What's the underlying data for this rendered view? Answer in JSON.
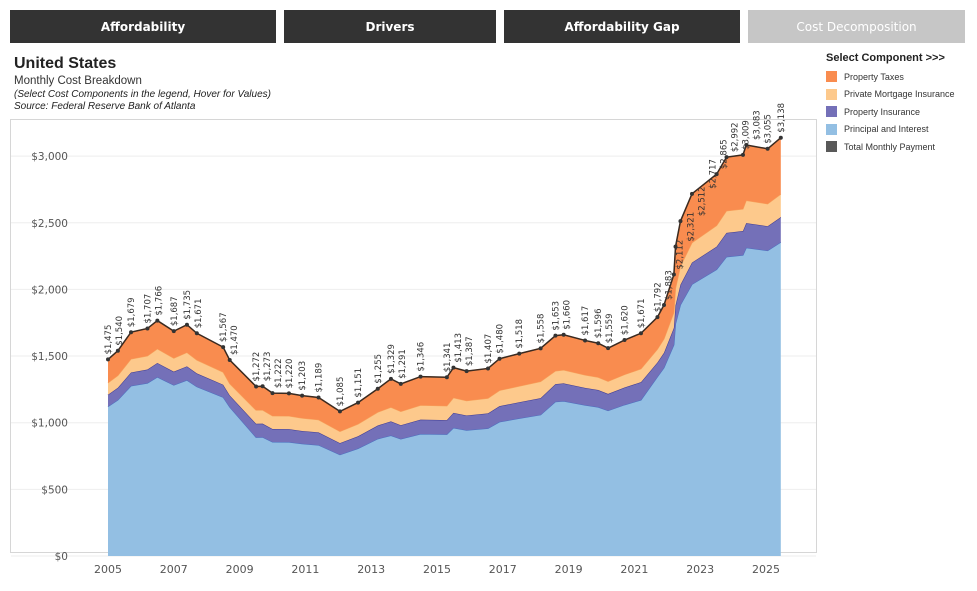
{
  "tabs": [
    {
      "label": "Affordability"
    },
    {
      "label": "Drivers"
    },
    {
      "label": "Affordability Gap"
    },
    {
      "label": "Cost Decomposition"
    }
  ],
  "header": {
    "title": "United States",
    "subtitle": "Monthly Cost Breakdown",
    "instruction": "(Select Cost Components in the legend, Hover for Values)",
    "source": "Source: Federal Reserve Bank of Atlanta"
  },
  "legend": {
    "title": "Select Component >>>",
    "items": [
      {
        "label": "Property Taxes",
        "color": "#f98c4f"
      },
      {
        "label": "Private Mortgage Insurance",
        "color": "#fdc98c"
      },
      {
        "label": "Property Insurance",
        "color": "#7470b8"
      },
      {
        "label": "Principal and Interest",
        "color": "#93bfe3"
      },
      {
        "label": "Total Monthly Payment",
        "color": "#595959"
      }
    ]
  },
  "chart_data": {
    "type": "area",
    "title": "Monthly Cost Breakdown",
    "xlabel": "",
    "ylabel": "",
    "xlim": [
      2004.2,
      2025.9
    ],
    "ylim": [
      0,
      3300
    ],
    "xticks": [
      2005,
      2007,
      2009,
      2011,
      2013,
      2015,
      2017,
      2019,
      2021,
      2023,
      2025
    ],
    "yticks": [
      {
        "v": 0,
        "label": "$0"
      },
      {
        "v": 500,
        "label": "$500"
      },
      {
        "v": 1000,
        "label": "$1,000"
      },
      {
        "v": 1500,
        "label": "$1,500"
      },
      {
        "v": 2000,
        "label": "$2,000"
      },
      {
        "v": 2500,
        "label": "$2,500"
      },
      {
        "v": 3000,
        "label": "$3,000"
      }
    ],
    "grid": true,
    "stacked": true,
    "x": [
      2005.0,
      2005.3,
      2005.7,
      2006.2,
      2006.5,
      2007.0,
      2007.4,
      2007.7,
      2008.5,
      2008.7,
      2009.5,
      2009.7,
      2010.0,
      2010.5,
      2010.9,
      2011.4,
      2012.05,
      2012.6,
      2013.2,
      2013.6,
      2013.9,
      2014.5,
      2015.3,
      2015.5,
      2015.9,
      2016.55,
      2016.9,
      2017.5,
      2018.15,
      2018.6,
      2018.85,
      2019.5,
      2019.9,
      2020.2,
      2020.7,
      2021.2,
      2021.7,
      2021.9,
      2022.2,
      2022.25,
      2022.4,
      2022.75,
      2023.5,
      2023.8,
      2024.3,
      2024.4,
      2025.05,
      2025.45
    ],
    "series": [
      {
        "name": "Principal and Interest",
        "values": [
          1121,
          1170,
          1276,
          1297,
          1342,
          1282,
          1319,
          1270,
          1191,
          1117,
          890,
          891,
          855,
          854,
          842,
          832,
          760,
          806,
          879,
          904,
          878,
          915,
          912,
          961,
          943,
          957,
          1006,
          1032,
          1059,
          1157,
          1162,
          1132,
          1117,
          1091,
          1134,
          1170,
          1344,
          1412,
          1584,
          1741,
          1884,
          2038,
          2149,
          2244,
          2257,
          2312,
          2291,
          2354
        ]
      },
      {
        "name": "Property Insurance",
        "values": [
          89,
          92,
          101,
          102,
          106,
          101,
          104,
          100,
          94,
          88,
          102,
          102,
          98,
          98,
          96,
          95,
          87,
          92,
          100,
          106,
          103,
          108,
          107,
          113,
          111,
          113,
          118,
          121,
          125,
          132,
          133,
          129,
          128,
          125,
          130,
          134,
          108,
          113,
          127,
          139,
          151,
          163,
          172,
          180,
          181,
          185,
          183,
          188
        ]
      },
      {
        "name": "Private Mortgage Insurance",
        "values": [
          89,
          92,
          101,
          102,
          106,
          101,
          104,
          100,
          94,
          88,
          102,
          102,
          98,
          98,
          96,
          95,
          87,
          92,
          100,
          106,
          103,
          108,
          107,
          113,
          111,
          113,
          118,
          121,
          125,
          99,
          100,
          97,
          96,
          94,
          97,
          100,
          99,
          104,
          116,
          128,
          138,
          149,
          158,
          165,
          165,
          170,
          168,
          173
        ]
      },
      {
        "name": "Property Taxes",
        "values": [
          176,
          186,
          201,
          206,
          212,
          203,
          208,
          201,
          188,
          177,
          178,
          178,
          171,
          170,
          169,
          167,
          151,
          161,
          176,
          213,
          207,
          215,
          215,
          226,
          222,
          224,
          238,
          244,
          249,
          265,
          265,
          259,
          255,
          249,
          259,
          267,
          241,
          254,
          285,
          313,
          339,
          367,
          386,
          403,
          406,
          416,
          413,
          423
        ]
      }
    ],
    "totals": {
      "name": "Total Monthly Payment",
      "values": [
        1475,
        1540,
        1679,
        1707,
        1766,
        1687,
        1735,
        1671,
        1567,
        1470,
        1272,
        1273,
        1222,
        1220,
        1203,
        1189,
        1085,
        1151,
        1255,
        1329,
        1291,
        1346,
        1341,
        1413,
        1387,
        1407,
        1480,
        1518,
        1558,
        1653,
        1660,
        1617,
        1596,
        1559,
        1620,
        1671,
        1792,
        1883,
        2112,
        2321,
        2512,
        2717,
        2865,
        2992,
        3009,
        3083,
        3055,
        3138
      ],
      "labels": [
        "$1,475",
        "$1,540",
        "$1,679",
        "$1,707",
        "$1,766",
        "$1,687",
        "$1,735",
        "$1,671",
        "$1,567",
        "$1,470",
        "$1,272",
        "$1,273",
        "$1,222",
        "$1,220",
        "$1,203",
        "$1,189",
        "$1,085",
        "$1,151",
        "$1,255",
        "$1,329",
        "$1,291",
        "$1,346",
        "$1,341",
        "$1,413",
        "$1,387",
        "$1,407",
        "$1,480",
        "$1,518",
        "$1,558",
        "$1,653",
        "$1,660",
        "$1,617",
        "$1,596",
        "$1,559",
        "$1,620",
        "$1,671",
        "$1,792",
        "$1,883",
        "$2,112",
        "$2,321",
        "$2,512",
        "$2,717",
        "$2,865",
        "$2,992",
        "$3,009",
        "$3,083",
        "$3,055",
        "$3,138"
      ]
    }
  }
}
